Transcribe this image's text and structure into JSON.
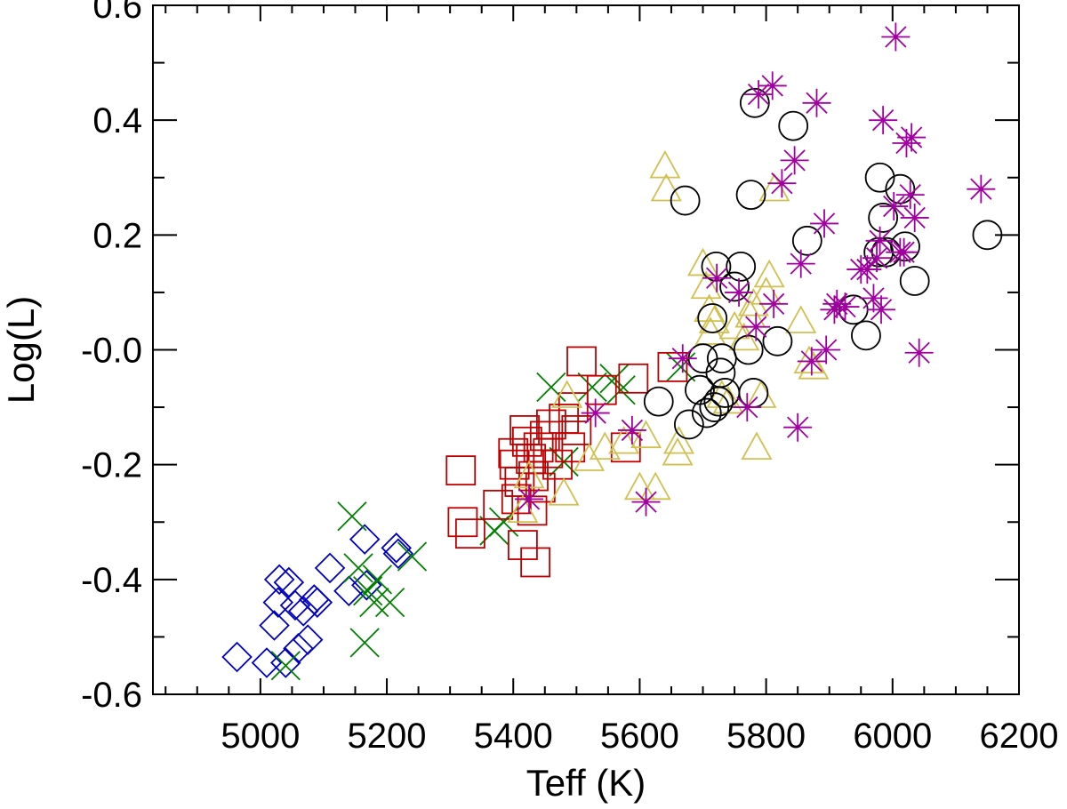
{
  "chart_data": {
    "type": "scatter",
    "title": "",
    "xlabel": "Teff (K)",
    "ylabel": "Log(L)",
    "xlim": [
      4830,
      6200
    ],
    "ylim": [
      -0.6,
      0.6
    ],
    "xticks": [
      5000,
      5200,
      5400,
      5600,
      5800,
      6000,
      6200
    ],
    "xtick_labels": [
      "5000",
      "5200",
      "5400",
      "5600",
      "5800",
      "6000",
      "6200"
    ],
    "yticks": [
      -0.6,
      -0.4,
      -0.2,
      0.0,
      0.2,
      0.4,
      0.6
    ],
    "ytick_labels": [
      "-0.6",
      "-0.4",
      "-0.2",
      "-0.0",
      "0.2",
      "0.4",
      "0.6"
    ],
    "x_minor_step": 50,
    "y_minor_step": 0.1,
    "grid": false,
    "series": [
      {
        "name": "diamonds",
        "marker": "diamond",
        "color": "#0000c0",
        "points": [
          [
            4963,
            -0.535
          ],
          [
            5010,
            -0.545
          ],
          [
            5022,
            -0.48
          ],
          [
            5028,
            -0.44
          ],
          [
            5030,
            -0.4
          ],
          [
            5040,
            -0.545
          ],
          [
            5045,
            -0.405
          ],
          [
            5055,
            -0.445
          ],
          [
            5060,
            -0.52
          ],
          [
            5068,
            -0.455
          ],
          [
            5075,
            -0.505
          ],
          [
            5085,
            -0.435
          ],
          [
            5090,
            -0.44
          ],
          [
            5110,
            -0.38
          ],
          [
            5140,
            -0.42
          ],
          [
            5165,
            -0.33
          ],
          [
            5168,
            -0.41
          ],
          [
            5215,
            -0.345
          ],
          [
            5218,
            -0.355
          ]
        ]
      },
      {
        "name": "crosses",
        "marker": "x",
        "color": "#008000",
        "points": [
          [
            5040,
            -0.55
          ],
          [
            5145,
            -0.29
          ],
          [
            5155,
            -0.38
          ],
          [
            5165,
            -0.51
          ],
          [
            5170,
            -0.42
          ],
          [
            5180,
            -0.44
          ],
          [
            5185,
            -0.4
          ],
          [
            5205,
            -0.44
          ],
          [
            5240,
            -0.36
          ],
          [
            5370,
            -0.315
          ],
          [
            5385,
            -0.3
          ],
          [
            5460,
            -0.065
          ],
          [
            5480,
            -0.195
          ],
          [
            5525,
            -0.065
          ],
          [
            5560,
            -0.05
          ],
          [
            5570,
            -0.07
          ],
          [
            5665,
            -0.03
          ]
        ]
      },
      {
        "name": "squares",
        "marker": "square",
        "color": "#c00000",
        "points": [
          [
            5317,
            -0.21
          ],
          [
            5320,
            -0.3
          ],
          [
            5332,
            -0.32
          ],
          [
            5376,
            -0.27
          ],
          [
            5400,
            -0.18
          ],
          [
            5402,
            -0.2
          ],
          [
            5405,
            -0.26
          ],
          [
            5410,
            -0.23
          ],
          [
            5415,
            -0.34
          ],
          [
            5418,
            -0.14
          ],
          [
            5422,
            -0.16
          ],
          [
            5428,
            -0.19
          ],
          [
            5430,
            -0.28
          ],
          [
            5432,
            -0.22
          ],
          [
            5435,
            -0.37
          ],
          [
            5440,
            -0.17
          ],
          [
            5443,
            -0.24
          ],
          [
            5450,
            -0.15
          ],
          [
            5455,
            -0.18
          ],
          [
            5460,
            -0.13
          ],
          [
            5470,
            -0.2
          ],
          [
            5480,
            -0.12
          ],
          [
            5490,
            -0.17
          ],
          [
            5495,
            -0.1
          ],
          [
            5500,
            -0.14
          ],
          [
            5508,
            -0.02
          ],
          [
            5540,
            -0.07
          ],
          [
            5578,
            -0.17
          ],
          [
            5590,
            -0.05
          ],
          [
            5652,
            -0.03
          ]
        ]
      },
      {
        "name": "triangles",
        "marker": "triangle",
        "color": "#d0c050",
        "points": [
          [
            5415,
            -0.28
          ],
          [
            5425,
            -0.22
          ],
          [
            5480,
            -0.25
          ],
          [
            5485,
            -0.08
          ],
          [
            5520,
            -0.19
          ],
          [
            5545,
            -0.17
          ],
          [
            5575,
            -0.16
          ],
          [
            5600,
            -0.24
          ],
          [
            5610,
            -0.15
          ],
          [
            5625,
            -0.24
          ],
          [
            5640,
            0.32
          ],
          [
            5642,
            0.28
          ],
          [
            5660,
            -0.18
          ],
          [
            5662,
            -0.16
          ],
          [
            5700,
            0.15
          ],
          [
            5705,
            0.11
          ],
          [
            5710,
            0.07
          ],
          [
            5712,
            0.03
          ],
          [
            5718,
            0.05
          ],
          [
            5730,
            -0.08
          ],
          [
            5740,
            -0.09
          ],
          [
            5750,
            0.04
          ],
          [
            5765,
            0.02
          ],
          [
            5775,
            0.06
          ],
          [
            5780,
            0.08
          ],
          [
            5785,
            -0.17
          ],
          [
            5792,
            -0.08
          ],
          [
            5800,
            0.1
          ],
          [
            5805,
            0.13
          ],
          [
            5813,
            0.28
          ],
          [
            5855,
            0.05
          ],
          [
            5868,
            -0.02
          ],
          [
            5875,
            -0.03
          ]
        ]
      },
      {
        "name": "circles",
        "marker": "circle",
        "color": "#000000",
        "points": [
          [
            5630,
            -0.09
          ],
          [
            5672,
            0.26
          ],
          [
            5678,
            -0.13
          ],
          [
            5695,
            -0.07
          ],
          [
            5700,
            -0.015
          ],
          [
            5706,
            -0.11
          ],
          [
            5715,
            0.055
          ],
          [
            5718,
            -0.1
          ],
          [
            5721,
            0.145
          ],
          [
            5725,
            -0.09
          ],
          [
            5728,
            -0.04
          ],
          [
            5730,
            -0.015
          ],
          [
            5735,
            -0.075
          ],
          [
            5750,
            0.11
          ],
          [
            5760,
            0.145
          ],
          [
            5772,
            0.0
          ],
          [
            5776,
            0.27
          ],
          [
            5780,
            -0.075
          ],
          [
            5782,
            0.43
          ],
          [
            5818,
            0.015
          ],
          [
            5843,
            0.39
          ],
          [
            5865,
            0.19
          ],
          [
            5938,
            0.07
          ],
          [
            5958,
            0.025
          ],
          [
            5978,
            0.17
          ],
          [
            5980,
            0.3
          ],
          [
            5985,
            0.23
          ],
          [
            5990,
            0.17
          ],
          [
            6012,
            0.28
          ],
          [
            6020,
            0.18
          ],
          [
            6035,
            0.12
          ],
          [
            6150,
            0.2
          ]
        ]
      },
      {
        "name": "asterisks",
        "marker": "asterisk",
        "color": "#a000a0",
        "points": [
          [
            5425,
            -0.26
          ],
          [
            5530,
            -0.11
          ],
          [
            5588,
            -0.14
          ],
          [
            5610,
            -0.265
          ],
          [
            5668,
            -0.015
          ],
          [
            5722,
            0.125
          ],
          [
            5757,
            0.1
          ],
          [
            5770,
            -0.1
          ],
          [
            5784,
            0.04
          ],
          [
            5788,
            0.445
          ],
          [
            5810,
            0.46
          ],
          [
            5812,
            0.08
          ],
          [
            5825,
            0.29
          ],
          [
            5845,
            0.33
          ],
          [
            5850,
            -0.135
          ],
          [
            5855,
            0.15
          ],
          [
            5872,
            -0.02
          ],
          [
            5880,
            0.43
          ],
          [
            5892,
            0.22
          ],
          [
            5895,
            0.0
          ],
          [
            5908,
            0.07
          ],
          [
            5912,
            0.08
          ],
          [
            5925,
            0.075
          ],
          [
            5950,
            0.14
          ],
          [
            5960,
            0.14
          ],
          [
            5970,
            0.09
          ],
          [
            5975,
            0.16
          ],
          [
            5980,
            0.19
          ],
          [
            5982,
            0.07
          ],
          [
            5985,
            0.4
          ],
          [
            6002,
            0.25
          ],
          [
            6005,
            0.545
          ],
          [
            6012,
            0.17
          ],
          [
            6018,
            0.17
          ],
          [
            6022,
            0.36
          ],
          [
            6028,
            0.27
          ],
          [
            6030,
            0.37
          ],
          [
            6035,
            0.23
          ],
          [
            6042,
            -0.005
          ],
          [
            6140,
            0.28
          ]
        ]
      }
    ]
  }
}
